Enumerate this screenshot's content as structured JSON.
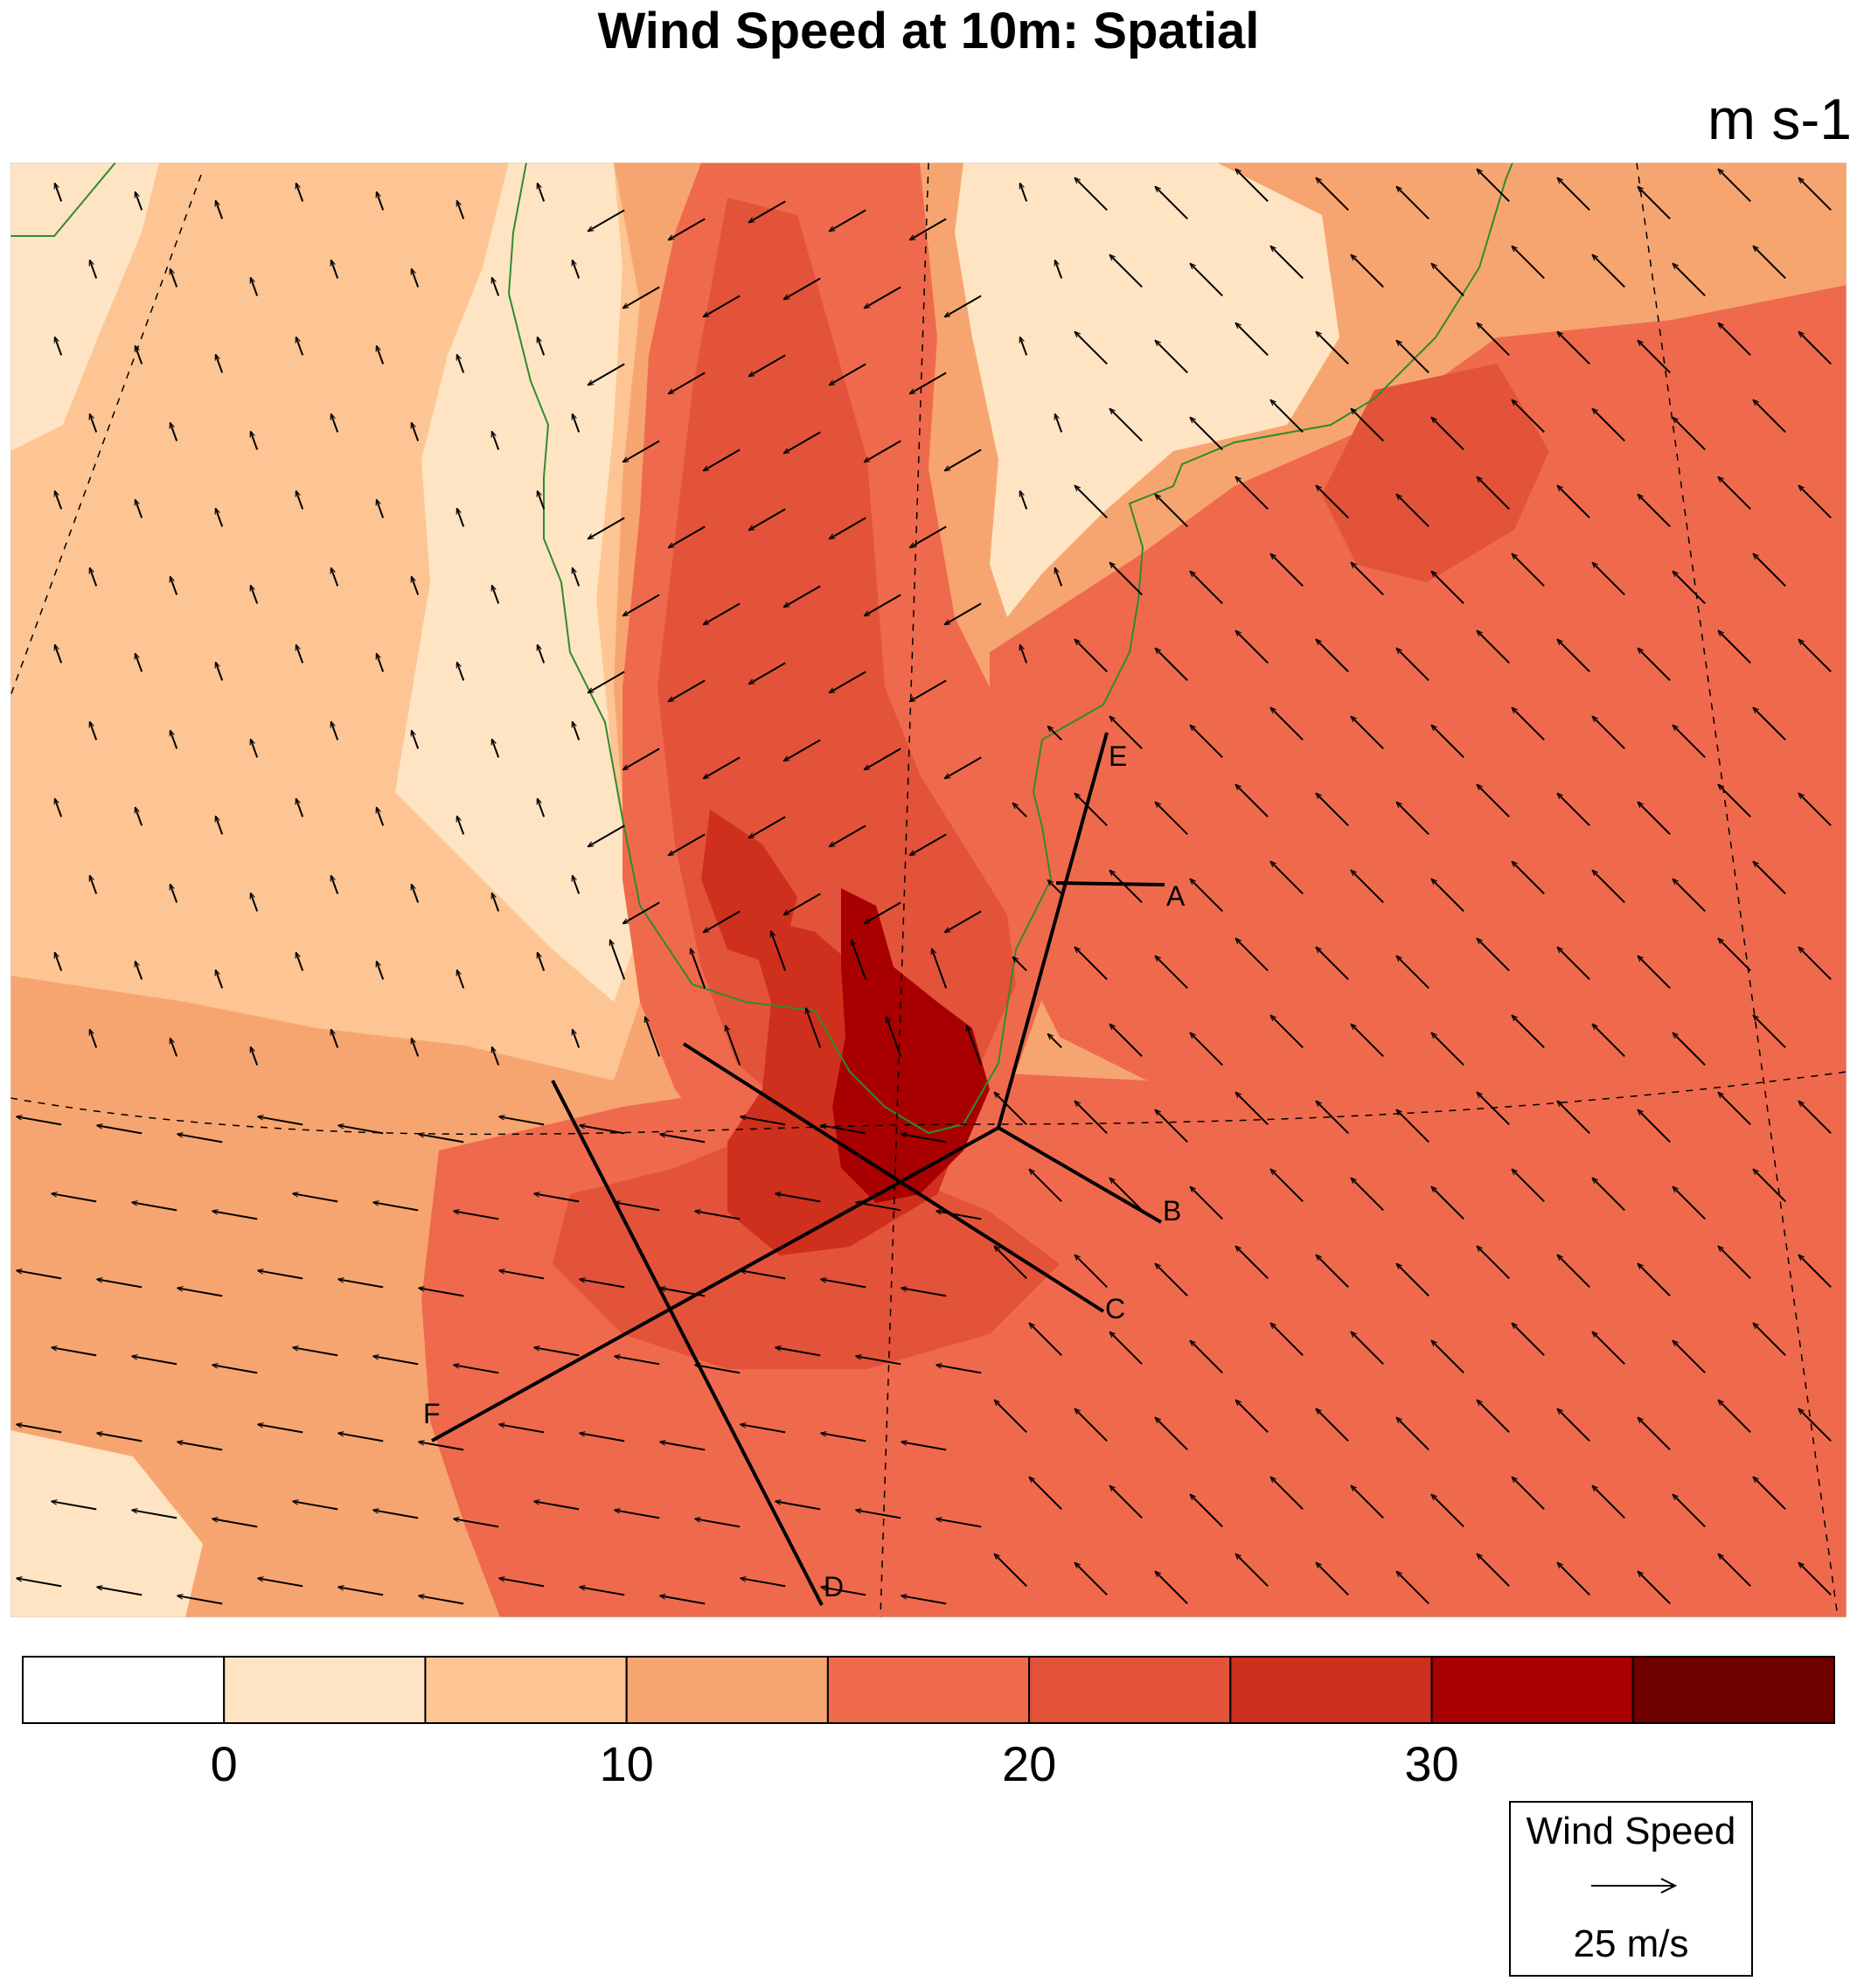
{
  "title": "Wind Speed at 10m: Spatial",
  "units": "m s-1",
  "colorbar": {
    "colors": [
      "#ffffff",
      "#fee4c3",
      "#fcc593",
      "#f7a570",
      "#ef6a4c",
      "#e2533a",
      "#cf2f1d",
      "#a80000",
      "#6e0000"
    ],
    "tick_labels": [
      "0",
      "10",
      "20",
      "30"
    ],
    "tick_values": [
      0,
      10,
      20,
      30
    ],
    "range": [
      -5,
      40
    ],
    "interval": 5
  },
  "vector_legend": {
    "title": "Wind Speed",
    "reference_label": "25 m/s",
    "reference_speed": 25
  },
  "cross_sections": [
    {
      "label": "A"
    },
    {
      "label": "B"
    },
    {
      "label": "C"
    },
    {
      "label": "D"
    },
    {
      "label": "E"
    },
    {
      "label": "F"
    }
  ],
  "coastline_color": "#2e8b2e",
  "icons": {
    "vector_legend_arrow": "right-arrow-icon"
  }
}
